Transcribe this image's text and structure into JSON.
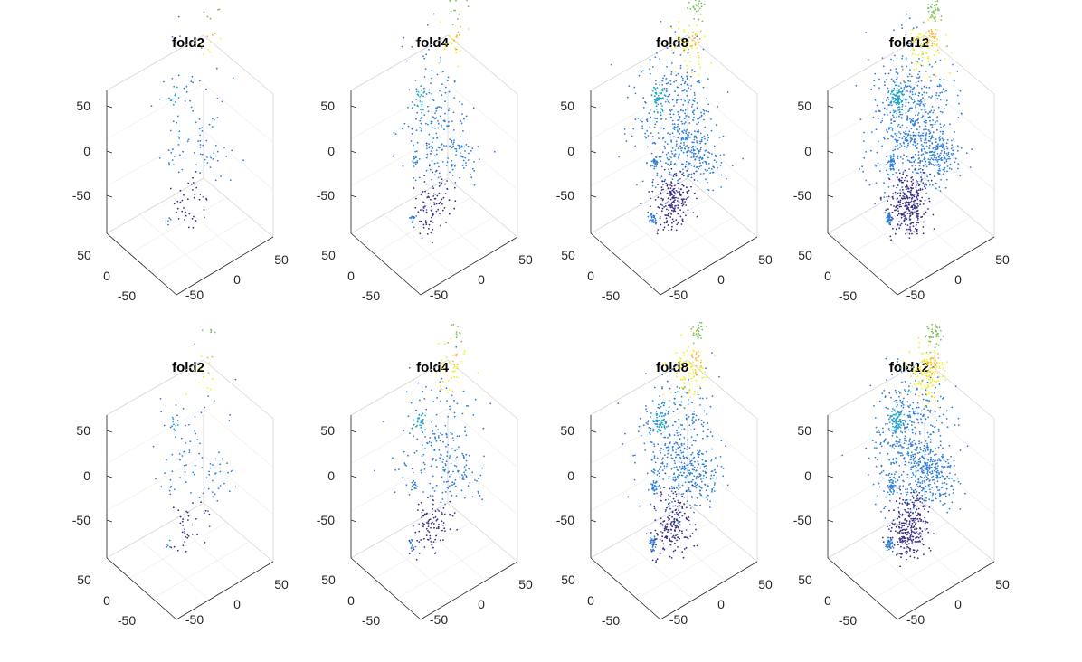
{
  "colors": {
    "dark": "#3b2f86",
    "blue": "#2f7fd8",
    "cyan": "#1aa8c4",
    "teal": "#38b59c",
    "green": "#7bbf5a",
    "yellow": "#f5ee1c",
    "orange": "#f0b13a",
    "box": "#d6d6d6",
    "axis": "#262626"
  },
  "chart_data": [
    {
      "type": "scatter3d",
      "title": "fold2",
      "n": 160,
      "yellowMix": 0.55,
      "zlim": [
        -70,
        70
      ],
      "z_ticks": [
        "50",
        "0",
        "-50"
      ],
      "x_ticks": [
        "50",
        "0",
        "-50"
      ],
      "y_ticks": [
        "-50",
        "0",
        "50"
      ]
    },
    {
      "type": "scatter3d",
      "title": "fold4",
      "n": 420,
      "yellowMix": 0.6,
      "zlim": [
        -70,
        70
      ],
      "z_ticks": [
        "50",
        "0",
        "-50"
      ],
      "x_ticks": [
        "50",
        "0",
        "-50"
      ],
      "y_ticks": [
        "-50",
        "0",
        "50"
      ]
    },
    {
      "type": "scatter3d",
      "title": "fold8",
      "n": 900,
      "yellowMix": 0.7,
      "zlim": [
        -70,
        70
      ],
      "z_ticks": [
        "50",
        "0",
        "-50"
      ],
      "x_ticks": [
        "50",
        "0",
        "-50"
      ],
      "y_ticks": [
        "-50",
        "0",
        "50"
      ]
    },
    {
      "type": "scatter3d",
      "title": "fold12",
      "n": 1300,
      "yellowMix": 0.75,
      "zlim": [
        -70,
        70
      ],
      "z_ticks": [
        "50",
        "0",
        "-50"
      ],
      "x_ticks": [
        "50",
        "0",
        "-50"
      ],
      "y_ticks": [
        "-50",
        "0",
        "50"
      ]
    },
    {
      "type": "scatter3d",
      "title": "fold2",
      "n": 160,
      "yellowMix": 0.95,
      "zlim": [
        -70,
        70
      ],
      "z_ticks": [
        "50",
        "0",
        "-50"
      ],
      "x_ticks": [
        "50",
        "0",
        "-50"
      ],
      "y_ticks": [
        "-50",
        "0",
        "50"
      ]
    },
    {
      "type": "scatter3d",
      "title": "fold4",
      "n": 420,
      "yellowMix": 1.2,
      "zlim": [
        -70,
        70
      ],
      "z_ticks": [
        "50",
        "0",
        "-50"
      ],
      "x_ticks": [
        "50",
        "0",
        "-50"
      ],
      "y_ticks": [
        "-50",
        "0",
        "50"
      ]
    },
    {
      "type": "scatter3d",
      "title": "fold8",
      "n": 900,
      "yellowMix": 1.35,
      "zlim": [
        -70,
        70
      ],
      "z_ticks": [
        "50",
        "0",
        "-50"
      ],
      "x_ticks": [
        "50",
        "0",
        "-50"
      ],
      "y_ticks": [
        "-50",
        "0",
        "50"
      ]
    },
    {
      "type": "scatter3d",
      "title": "fold12",
      "n": 1300,
      "yellowMix": 1.45,
      "zlim": [
        -70,
        70
      ],
      "z_ticks": [
        "50",
        "0",
        "-50"
      ],
      "x_ticks": [
        "50",
        "0",
        "-50"
      ],
      "y_ticks": [
        "-50",
        "0",
        "50"
      ]
    }
  ]
}
